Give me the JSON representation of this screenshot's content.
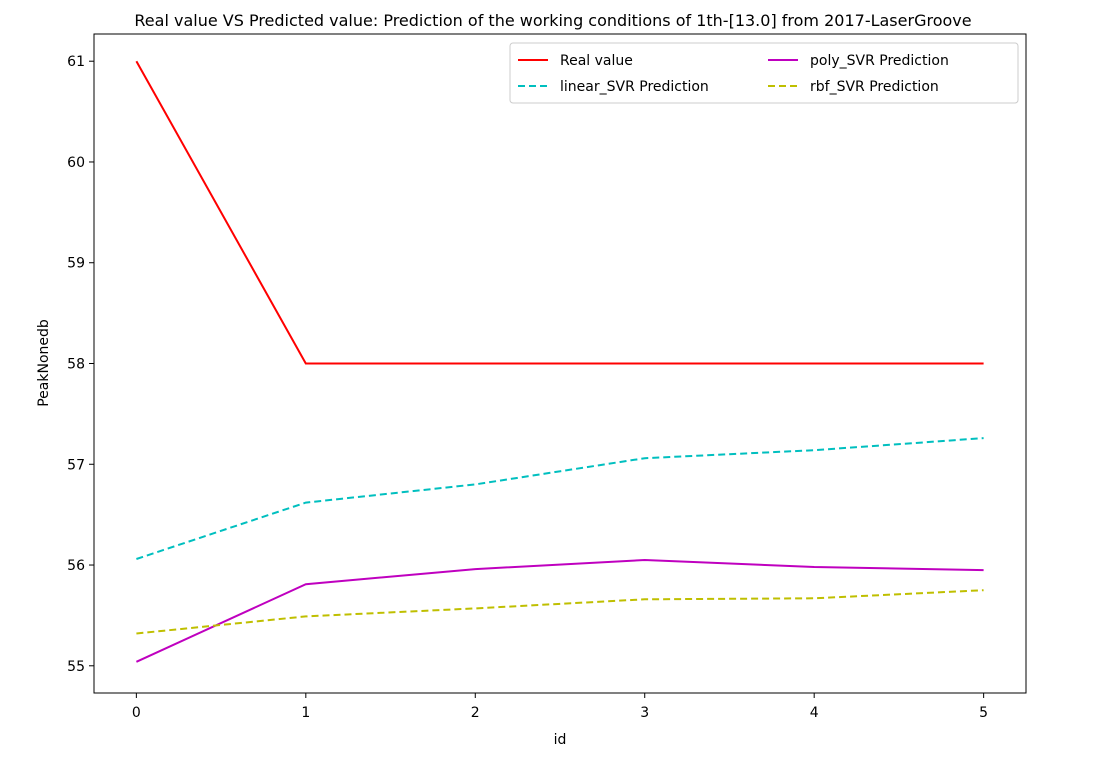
{
  "chart_data": {
    "type": "line",
    "title": "Real value VS Predicted value: Prediction of the working conditions of 1th-[13.0] from 2017-LaserGroove",
    "xlabel": "id",
    "ylabel": "PeakNonedb",
    "x": [
      0,
      1,
      2,
      3,
      4,
      5
    ],
    "xlim": [
      -0.25,
      5.25
    ],
    "ylim": [
      54.73,
      61.27
    ],
    "xticks": [
      "0",
      "1",
      "2",
      "3",
      "4",
      "5"
    ],
    "yticks": [
      "55",
      "56",
      "57",
      "58",
      "59",
      "60",
      "61"
    ],
    "grid": false,
    "legend": {
      "placement": "top-right",
      "columns": 2
    },
    "series": [
      {
        "name": "Real value",
        "color": "#ff0000",
        "dash": "solid",
        "values": [
          61.0,
          58.0,
          58.0,
          58.0,
          58.0,
          58.0
        ]
      },
      {
        "name": "linear_SVR Prediction",
        "color": "#00bfbf",
        "dash": "dashed",
        "values": [
          56.06,
          56.62,
          56.8,
          57.06,
          57.14,
          57.26
        ]
      },
      {
        "name": "poly_SVR Prediction",
        "color": "#bf00bf",
        "dash": "solid",
        "values": [
          55.04,
          55.81,
          55.96,
          56.05,
          55.98,
          55.95
        ]
      },
      {
        "name": "rbf_SVR Prediction",
        "color": "#bfbf00",
        "dash": "dashed",
        "values": [
          55.32,
          55.49,
          55.57,
          55.66,
          55.67,
          55.75
        ]
      }
    ]
  }
}
